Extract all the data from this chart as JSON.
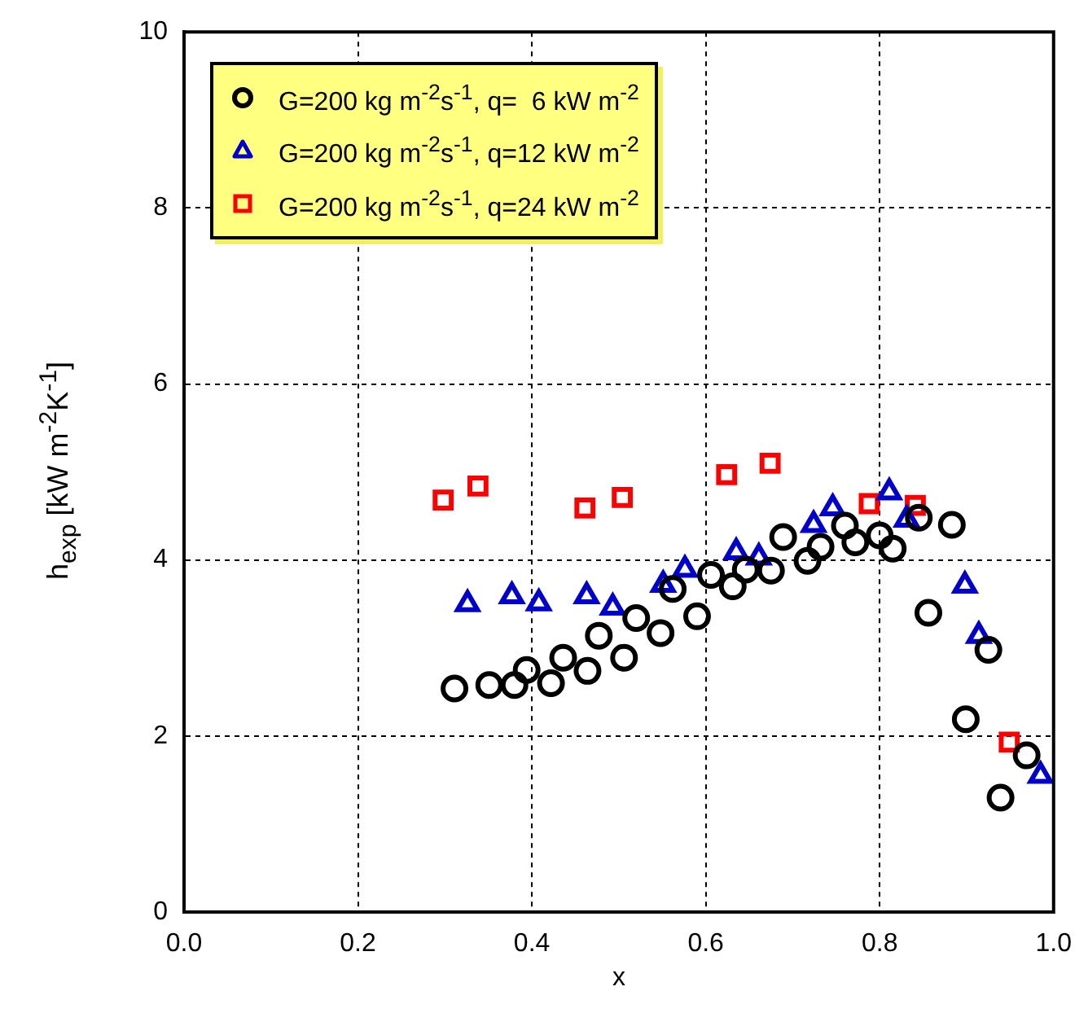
{
  "chart_data": {
    "type": "scatter",
    "xlabel": "x",
    "ylabel": "h$_{exp}$ [kW m$^{-2}$K$^{-1}$]",
    "xlim": [
      0,
      1
    ],
    "xticks": [
      {
        "value": 0,
        "label": "0.0"
      },
      {
        "value": 0.2,
        "label": "0.2"
      },
      {
        "value": 0.4,
        "label": "0.4"
      },
      {
        "value": 0.6,
        "label": "0.6"
      },
      {
        "value": 0.8,
        "label": "0.8"
      },
      {
        "value": 1,
        "label": "1.0"
      }
    ],
    "ylim": [
      0,
      10
    ],
    "yticks": [
      0,
      2,
      4,
      6,
      8,
      10
    ],
    "grid": true,
    "legend": "top left",
    "series": [
      {
        "name": "G=200 kg m$^{-2}$s$^{-1}$, q=  6 kW m$^{-2}$",
        "color": "#000000",
        "marker": "circle",
        "x": [
          0.311,
          0.351,
          0.38,
          0.394,
          0.422,
          0.436,
          0.464,
          0.477,
          0.506,
          0.52,
          0.548,
          0.562,
          0.59,
          0.606,
          0.631,
          0.646,
          0.675,
          0.689,
          0.717,
          0.732,
          0.76,
          0.772,
          0.8,
          0.815,
          0.845,
          0.856,
          0.883,
          0.899,
          0.925,
          0.939,
          0.969
        ],
        "values": [
          2.54,
          2.58,
          2.58,
          2.75,
          2.6,
          2.89,
          2.74,
          3.14,
          2.89,
          3.34,
          3.17,
          3.67,
          3.36,
          3.83,
          3.7,
          3.89,
          3.88,
          4.26,
          3.99,
          4.15,
          4.39,
          4.2,
          4.28,
          4.13,
          4.48,
          3.4,
          4.4,
          2.19,
          2.98,
          1.3,
          1.78
        ]
      },
      {
        "name": "G=200 kg m$^{-2}$s$^{-1}$, q=12 kW m$^{-2}$",
        "color": "#0000cc",
        "marker": "triangle",
        "x": [
          0.326,
          0.377,
          0.408,
          0.463,
          0.493,
          0.551,
          0.576,
          0.635,
          0.661,
          0.724,
          0.746,
          0.811,
          0.831,
          0.898,
          0.914,
          0.985
        ],
        "values": [
          3.5,
          3.59,
          3.51,
          3.59,
          3.46,
          3.72,
          3.89,
          4.09,
          4.03,
          4.4,
          4.59,
          4.77,
          4.46,
          3.71,
          3.14,
          1.55
        ]
      },
      {
        "name": "G=200 kg m$^{-2}$s$^{-1}$, q=24 kW m$^{-2}$",
        "color": "#ff0000",
        "marker": "square",
        "x": [
          0.298,
          0.338,
          0.461,
          0.504,
          0.624,
          0.674,
          0.788,
          0.841,
          0.949
        ],
        "values": [
          4.68,
          4.84,
          4.59,
          4.71,
          4.97,
          5.1,
          4.64,
          4.62,
          1.93
        ]
      }
    ]
  }
}
